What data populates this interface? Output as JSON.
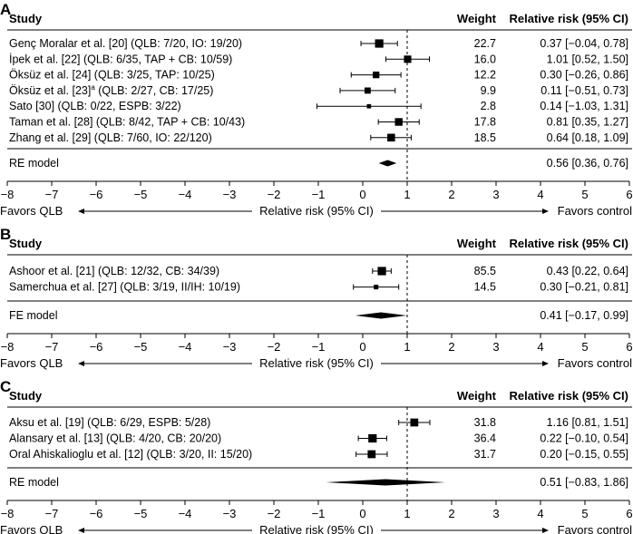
{
  "chart_data": [
    {
      "type": "forest",
      "panel_label": "A",
      "headers": {
        "study": "Study",
        "weight": "Weight",
        "rr": "Relative risk (95% CI)"
      },
      "studies": [
        {
          "label": "Genç Moralar et al. [20] (QLB: 7/20, IO: 19/20)",
          "weight": "22.7",
          "ci_text": "0.37 [−0.04, 0.78]",
          "est": 0.37,
          "lo": -0.04,
          "hi": 0.78,
          "wt": 22.7
        },
        {
          "label": "İpek et al. [22] (QLB: 6/35, TAP + CB: 10/59)",
          "weight": "16.0",
          "ci_text": "1.01 [0.52, 1.50]",
          "est": 1.01,
          "lo": 0.52,
          "hi": 1.5,
          "wt": 16.0
        },
        {
          "label": "Öksüz et al. [24] (QLB: 3/25, TAP: 10/25)",
          "weight": "12.2",
          "ci_text": "0.30 [−0.26, 0.86]",
          "est": 0.3,
          "lo": -0.26,
          "hi": 0.86,
          "wt": 12.2
        },
        {
          "label": "Öksüz et al. [23]",
          "sup": "a",
          "label_rest": " (QLB: 2/27, CB: 17/25)",
          "weight": "9.9",
          "ci_text": "0.11 [−0.51, 0.73]",
          "est": 0.11,
          "lo": -0.51,
          "hi": 0.73,
          "wt": 9.9
        },
        {
          "label": "Sato [30] (QLB: 0/22, ESPB: 3/22)",
          "weight": "2.8",
          "ci_text": "0.14 [−1.03, 1.31]",
          "est": 0.14,
          "lo": -1.03,
          "hi": 1.31,
          "wt": 2.8
        },
        {
          "label": "Taman et al. [28] (QLB: 8/42, TAP + CB: 10/43)",
          "weight": "17.8",
          "ci_text": "0.81 [0.35, 1.27]",
          "est": 0.81,
          "lo": 0.35,
          "hi": 1.27,
          "wt": 17.8
        },
        {
          "label": "Zhang et al. [29] (QLB: 7/60, IO: 22/120)",
          "weight": "18.5",
          "ci_text": "0.64 [0.18, 1.09]",
          "est": 0.64,
          "lo": 0.18,
          "hi": 1.09,
          "wt": 18.5
        }
      ],
      "summary": {
        "label": "RE model",
        "ci_text": "0.56 [0.36, 0.76]",
        "est": 0.56,
        "lo": 0.36,
        "hi": 0.76
      },
      "x_ticks": [
        -8,
        -7,
        -6,
        -5,
        -4,
        -3,
        -2,
        -1,
        0,
        1,
        2,
        3,
        4,
        5,
        6
      ],
      "x_tick_labels": [
        "−8",
        "−7",
        "−6",
        "−5",
        "−4",
        "−3",
        "−2",
        "−1",
        "0",
        "1",
        "2",
        "3",
        "4",
        "5",
        "6"
      ],
      "xlim": [
        -8,
        6
      ],
      "reference_line": 1,
      "xlabel": "Relative risk (95% CI)",
      "favors_left": "Favors QLB",
      "favors_right": "Favors control"
    },
    {
      "type": "forest",
      "panel_label": "B",
      "headers": {
        "study": "Study",
        "weight": "Weight",
        "rr": "Relative risk (95% CI)"
      },
      "studies": [
        {
          "label": "Ashoor et al. [21] (QLB: 12/32, CB: 34/39)",
          "weight": "85.5",
          "ci_text": "0.43 [0.22, 0.64]",
          "est": 0.43,
          "lo": 0.22,
          "hi": 0.64,
          "wt": 85.5
        },
        {
          "label": "Samerchua et al. [27] (QLB: 3/19, II/IH: 10/19)",
          "weight": "14.5",
          "ci_text": "0.30 [−0.21, 0.81]",
          "est": 0.3,
          "lo": -0.21,
          "hi": 0.81,
          "wt": 14.5
        }
      ],
      "summary": {
        "label": "FE model",
        "ci_text": "0.41 [−0.17, 0.99]",
        "est": 0.41,
        "lo": -0.17,
        "hi": 0.99
      },
      "x_ticks": [
        -8,
        -7,
        -6,
        -5,
        -4,
        -3,
        -2,
        -1,
        0,
        1,
        2,
        3,
        4,
        5,
        6
      ],
      "x_tick_labels": [
        "−8",
        "−7",
        "−6",
        "−5",
        "−4",
        "−3",
        "−2",
        "−1",
        "0",
        "1",
        "2",
        "3",
        "4",
        "5",
        "6"
      ],
      "xlim": [
        -8,
        6
      ],
      "reference_line": 1,
      "xlabel": "Relative risk (95% CI)",
      "favors_left": "Favors QLB",
      "favors_right": "Favors control"
    },
    {
      "type": "forest",
      "panel_label": "C",
      "headers": {
        "study": "Study",
        "weight": "Weight",
        "rr": "Relative risk (95% CI)"
      },
      "studies": [
        {
          "label": "Aksu et al. [19] (QLB: 6/29, ESPB: 5/28)",
          "weight": "31.8",
          "ci_text": "1.16 [0.81, 1.51]",
          "est": 1.16,
          "lo": 0.81,
          "hi": 1.51,
          "wt": 31.8
        },
        {
          "label": "Alansary et al. [13] (QLB: 4/20, CB: 20/20)",
          "weight": "36.4",
          "ci_text": "0.22 [−0.10, 0.54]",
          "est": 0.22,
          "lo": -0.1,
          "hi": 0.54,
          "wt": 36.4
        },
        {
          "label": "Oral Ahiskalioglu et al. [12] (QLB: 3/20, II: 15/20)",
          "weight": "31.7",
          "ci_text": "0.20 [−0.15, 0.55]",
          "est": 0.2,
          "lo": -0.15,
          "hi": 0.55,
          "wt": 31.7
        }
      ],
      "summary": {
        "label": "RE model",
        "ci_text": "0.51 [−0.83, 1.86]",
        "est": 0.51,
        "lo": -0.83,
        "hi": 1.86
      },
      "x_ticks": [
        -8,
        -7,
        -6,
        -5,
        -4,
        -3,
        -2,
        -1,
        0,
        1,
        2,
        3,
        4,
        5,
        6
      ],
      "x_tick_labels": [
        "−8",
        "−7",
        "−6",
        "−5",
        "−4",
        "−3",
        "−2",
        "−1",
        "0",
        "1",
        "2",
        "3",
        "4",
        "5",
        "6"
      ],
      "xlim": [
        -8,
        6
      ],
      "reference_line": 1,
      "xlabel": "Relative risk (95% CI)",
      "favors_left": "Favors QLB",
      "favors_right": "Favors control"
    }
  ],
  "colors": {
    "ink": "#000000",
    "background": "#ffffff"
  }
}
